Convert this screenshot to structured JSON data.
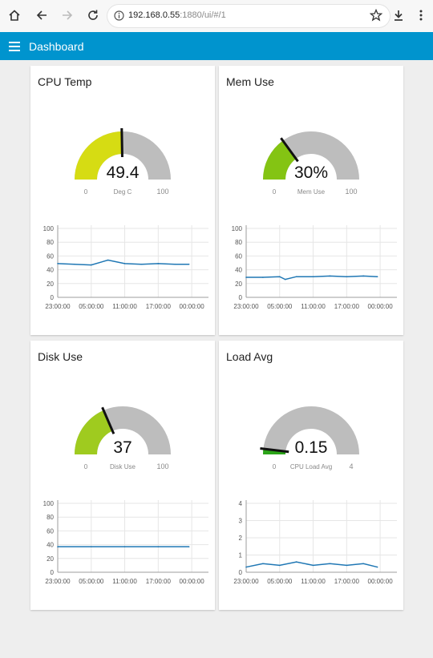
{
  "browser": {
    "url_host": "192.168.0.55",
    "url_rest": ":1880/ui/#/1"
  },
  "app": {
    "title": "Dashboard"
  },
  "colors": {
    "accent": "#0094ce",
    "gauge_track": "#bdbdbd",
    "line": "#1f77b4",
    "needle": "#111111"
  },
  "cards": [
    {
      "title": "CPU Temp",
      "gauge": {
        "value": "49.4",
        "units": "Deg C",
        "min": "0",
        "max": "100",
        "fraction": 0.494,
        "color": "#d6dc13"
      },
      "chart": {
        "ticks": [
          "0",
          "20",
          "40",
          "60",
          "80",
          "100"
        ],
        "xticks": [
          "23:00:00",
          "05:00:00",
          "11:00:00",
          "17:00:00",
          "00:00:00"
        ]
      }
    },
    {
      "title": "Mem Use",
      "gauge": {
        "value": "30%",
        "units": "Mem Use",
        "min": "0",
        "max": "100",
        "fraction": 0.3,
        "color": "#84c413"
      },
      "chart": {
        "ticks": [
          "0",
          "20",
          "40",
          "60",
          "80",
          "100"
        ],
        "xticks": [
          "23:00:00",
          "05:00:00",
          "11:00:00",
          "17:00:00",
          "00:00:00"
        ]
      }
    },
    {
      "title": "Disk Use",
      "gauge": {
        "value": "37",
        "units": "Disk Use",
        "min": "0",
        "max": "100",
        "fraction": 0.37,
        "color": "#9fcb1f"
      },
      "chart": {
        "ticks": [
          "0",
          "20",
          "40",
          "60",
          "80",
          "100"
        ],
        "xticks": [
          "23:00:00",
          "05:00:00",
          "11:00:00",
          "17:00:00",
          "00:00:00"
        ]
      }
    },
    {
      "title": "Load Avg",
      "gauge": {
        "value": "0.15",
        "units": "CPU Load Avg",
        "min": "0",
        "max": "4",
        "fraction": 0.0375,
        "color": "#2ba418"
      },
      "chart": {
        "ticks": [
          "0",
          "1",
          "2",
          "3",
          "4"
        ],
        "xticks": [
          "23:00:00",
          "05:00:00",
          "11:00:00",
          "17:00:00",
          "00:00:00"
        ]
      }
    }
  ],
  "chart_data": [
    {
      "type": "line",
      "title": "",
      "x": [
        "23:00:00",
        "02:00:00",
        "05:00:00",
        "08:00:00",
        "11:00:00",
        "14:00:00",
        "17:00:00",
        "20:00:00",
        "22:30:00"
      ],
      "series": [
        {
          "values": [
            49,
            48,
            47,
            54,
            49,
            48,
            49,
            48,
            48
          ]
        }
      ],
      "ylim": [
        0,
        100
      ],
      "xticks": [
        "23:00:00",
        "05:00:00",
        "11:00:00",
        "17:00:00",
        "00:00:00"
      ],
      "yticks": [
        0,
        20,
        40,
        60,
        80,
        100
      ],
      "grid": true
    },
    {
      "type": "line",
      "title": "",
      "x": [
        "23:00:00",
        "02:00:00",
        "05:00:00",
        "06:00:00",
        "08:00:00",
        "11:00:00",
        "14:00:00",
        "17:00:00",
        "20:00:00",
        "22:30:00"
      ],
      "series": [
        {
          "values": [
            29,
            29,
            30,
            26,
            30,
            30,
            31,
            30,
            31,
            30
          ]
        }
      ],
      "ylim": [
        0,
        100
      ],
      "xticks": [
        "23:00:00",
        "05:00:00",
        "11:00:00",
        "17:00:00",
        "00:00:00"
      ],
      "yticks": [
        0,
        20,
        40,
        60,
        80,
        100
      ],
      "grid": true
    },
    {
      "type": "line",
      "title": "",
      "x": [
        "23:00:00",
        "05:00:00",
        "11:00:00",
        "17:00:00",
        "22:30:00"
      ],
      "series": [
        {
          "values": [
            37,
            37,
            37,
            37,
            37
          ]
        }
      ],
      "ylim": [
        0,
        100
      ],
      "xticks": [
        "23:00:00",
        "05:00:00",
        "11:00:00",
        "17:00:00",
        "00:00:00"
      ],
      "yticks": [
        0,
        20,
        40,
        60,
        80,
        100
      ],
      "grid": true
    },
    {
      "type": "line",
      "title": "",
      "x": [
        "23:00:00",
        "02:00:00",
        "05:00:00",
        "08:00:00",
        "11:00:00",
        "14:00:00",
        "17:00:00",
        "20:00:00",
        "22:30:00"
      ],
      "series": [
        {
          "values": [
            0.3,
            0.5,
            0.4,
            0.6,
            0.4,
            0.5,
            0.4,
            0.5,
            0.3
          ]
        }
      ],
      "ylim": [
        0,
        4
      ],
      "xticks": [
        "23:00:00",
        "05:00:00",
        "11:00:00",
        "17:00:00",
        "00:00:00"
      ],
      "yticks": [
        0,
        1,
        2,
        3,
        4
      ],
      "grid": true
    }
  ]
}
